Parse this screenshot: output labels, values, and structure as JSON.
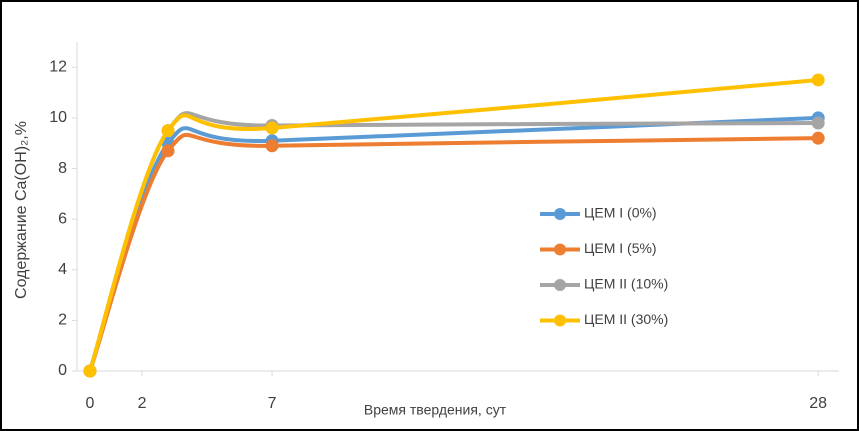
{
  "chart_data": {
    "type": "line",
    "y_label": "Содержание Ca(OH)₂,%",
    "x_label": "Время твердения, сут",
    "x": [
      0,
      3,
      7,
      28
    ],
    "series": [
      {
        "name": "ЦЕМ I (0%)",
        "color": "#5b9bd5",
        "values": [
          0,
          9.0,
          9.1,
          10.0
        ]
      },
      {
        "name": "ЦЕМ I  (5%)",
        "color": "#ed7d31",
        "values": [
          0,
          8.7,
          8.9,
          9.2
        ]
      },
      {
        "name": "ЦЕМ II (10%)",
        "color": "#a5a5a5",
        "values": [
          0,
          9.5,
          9.7,
          9.8
        ]
      },
      {
        "name": "ЦЕМ II (30%)",
        "color": "#ffc000",
        "values": [
          0,
          9.5,
          9.6,
          11.5
        ]
      }
    ],
    "xlim": [
      -0.5,
      28.8
    ],
    "xticks": [
      0,
      2,
      7,
      28
    ],
    "ylim": [
      0,
      13
    ],
    "yticks": [
      0,
      2,
      4,
      6,
      8,
      10,
      12
    ],
    "grid": false,
    "legend": "right"
  }
}
